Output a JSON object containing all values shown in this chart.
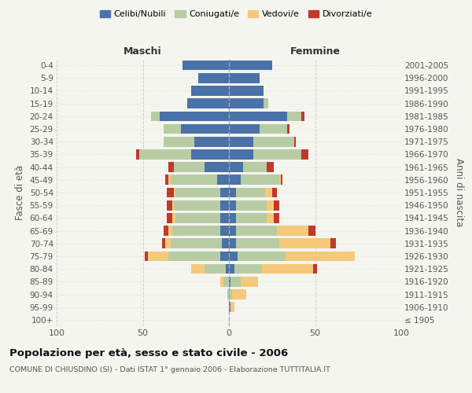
{
  "age_groups": [
    "100+",
    "95-99",
    "90-94",
    "85-89",
    "80-84",
    "75-79",
    "70-74",
    "65-69",
    "60-64",
    "55-59",
    "50-54",
    "45-49",
    "40-44",
    "35-39",
    "30-34",
    "25-29",
    "20-24",
    "15-19",
    "10-14",
    "5-9",
    "0-4"
  ],
  "birth_years": [
    "≤ 1905",
    "1906-1910",
    "1911-1915",
    "1916-1920",
    "1921-1925",
    "1926-1930",
    "1931-1935",
    "1936-1940",
    "1941-1945",
    "1946-1950",
    "1951-1955",
    "1956-1960",
    "1961-1965",
    "1966-1970",
    "1971-1975",
    "1976-1980",
    "1981-1985",
    "1986-1990",
    "1991-1995",
    "1996-2000",
    "2001-2005"
  ],
  "males": {
    "celibi": [
      0,
      0,
      0,
      0,
      2,
      5,
      4,
      5,
      5,
      5,
      5,
      7,
      14,
      22,
      20,
      28,
      40,
      24,
      22,
      18,
      27
    ],
    "coniugati": [
      0,
      0,
      1,
      3,
      12,
      30,
      30,
      28,
      26,
      27,
      26,
      27,
      18,
      30,
      18,
      10,
      5,
      0,
      0,
      0,
      0
    ],
    "vedovi": [
      0,
      0,
      0,
      2,
      8,
      12,
      3,
      2,
      2,
      1,
      1,
      1,
      0,
      0,
      0,
      0,
      0,
      0,
      0,
      0,
      0
    ],
    "divorziati": [
      0,
      0,
      0,
      0,
      0,
      2,
      2,
      3,
      3,
      3,
      4,
      2,
      3,
      2,
      0,
      0,
      0,
      0,
      0,
      0,
      0
    ]
  },
  "females": {
    "nubili": [
      0,
      1,
      0,
      1,
      3,
      5,
      4,
      4,
      4,
      4,
      4,
      7,
      8,
      14,
      14,
      18,
      34,
      20,
      20,
      18,
      25
    ],
    "coniugate": [
      0,
      0,
      2,
      6,
      16,
      28,
      25,
      24,
      18,
      18,
      17,
      22,
      14,
      28,
      24,
      16,
      8,
      3,
      0,
      0,
      0
    ],
    "vedove": [
      0,
      2,
      8,
      10,
      30,
      40,
      30,
      18,
      4,
      4,
      4,
      1,
      0,
      0,
      0,
      0,
      0,
      0,
      0,
      0,
      0
    ],
    "divorziate": [
      0,
      0,
      0,
      0,
      2,
      0,
      3,
      4,
      3,
      3,
      3,
      1,
      4,
      4,
      1,
      1,
      2,
      0,
      0,
      0,
      0
    ]
  },
  "colors": {
    "celibi_nubili": "#4a72a8",
    "coniugati": "#b8cca4",
    "vedovi": "#f5c97a",
    "divorziati": "#c0392b"
  },
  "xlim": 100,
  "title": "Popolazione per età, sesso e stato civile - 2006",
  "subtitle": "COMUNE DI CHIUSDINO (SI) - Dati ISTAT 1° gennaio 2006 - Elaborazione TUTTITALIA.IT",
  "ylabel_left": "Fasce di età",
  "ylabel_right": "Anni di nascita",
  "xlabel_left": "Maschi",
  "xlabel_right": "Femmine",
  "bg_color": "#f5f5f0",
  "grid_color": "#cccccc"
}
